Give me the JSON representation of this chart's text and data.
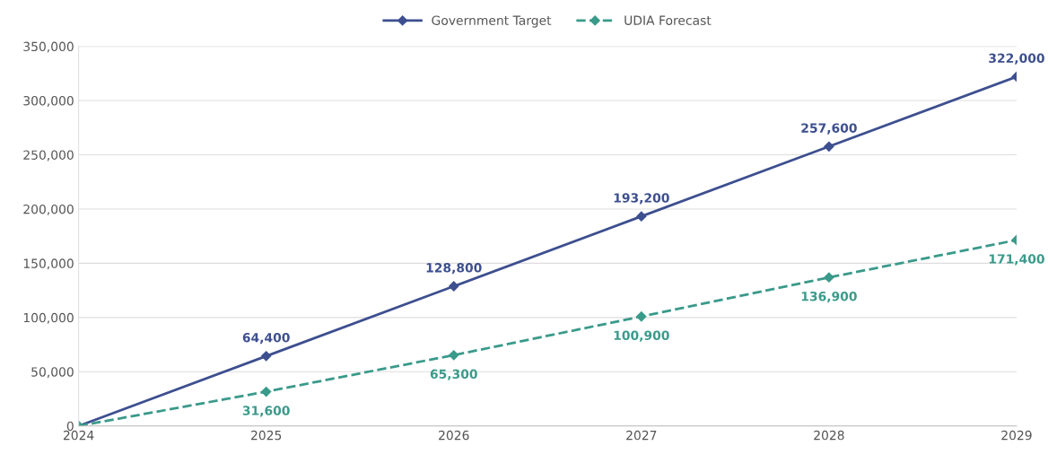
{
  "chart_data": {
    "type": "line",
    "x": [
      2024,
      2025,
      2026,
      2027,
      2028,
      2029
    ],
    "series": [
      {
        "name": "Government Target",
        "color": "#3d4f8f",
        "line_style": "solid",
        "values": [
          0,
          64400,
          128800,
          193200,
          257600,
          322000
        ],
        "value_labels": [
          null,
          "64,400",
          "128,800",
          "193,200",
          "257,600",
          "322,000"
        ]
      },
      {
        "name": "UDIA Forecast",
        "color": "#3a9a8a",
        "line_style": "dashed",
        "values": [
          0,
          31600,
          65300,
          100900,
          136900,
          171400
        ],
        "value_labels": [
          null,
          "31,600",
          "65,300",
          "100,900",
          "136,900",
          "171,400"
        ]
      }
    ],
    "xlim": [
      2024,
      2029
    ],
    "xticks": [
      2024,
      2025,
      2026,
      2027,
      2028,
      2029
    ],
    "ylim": [
      0,
      350000
    ],
    "yticks": [
      {
        "value": 0,
        "label": "0"
      },
      {
        "value": 50000,
        "label": "50,000"
      },
      {
        "value": 100000,
        "label": "100,000"
      },
      {
        "value": 150000,
        "label": "150,000"
      },
      {
        "value": 200000,
        "label": "200,000"
      },
      {
        "value": 250000,
        "label": "250,000"
      },
      {
        "value": 300000,
        "label": "300,000"
      },
      {
        "value": 350000,
        "label": "350,000"
      }
    ],
    "grid": "y",
    "legend": "top",
    "marker": "diamond"
  }
}
